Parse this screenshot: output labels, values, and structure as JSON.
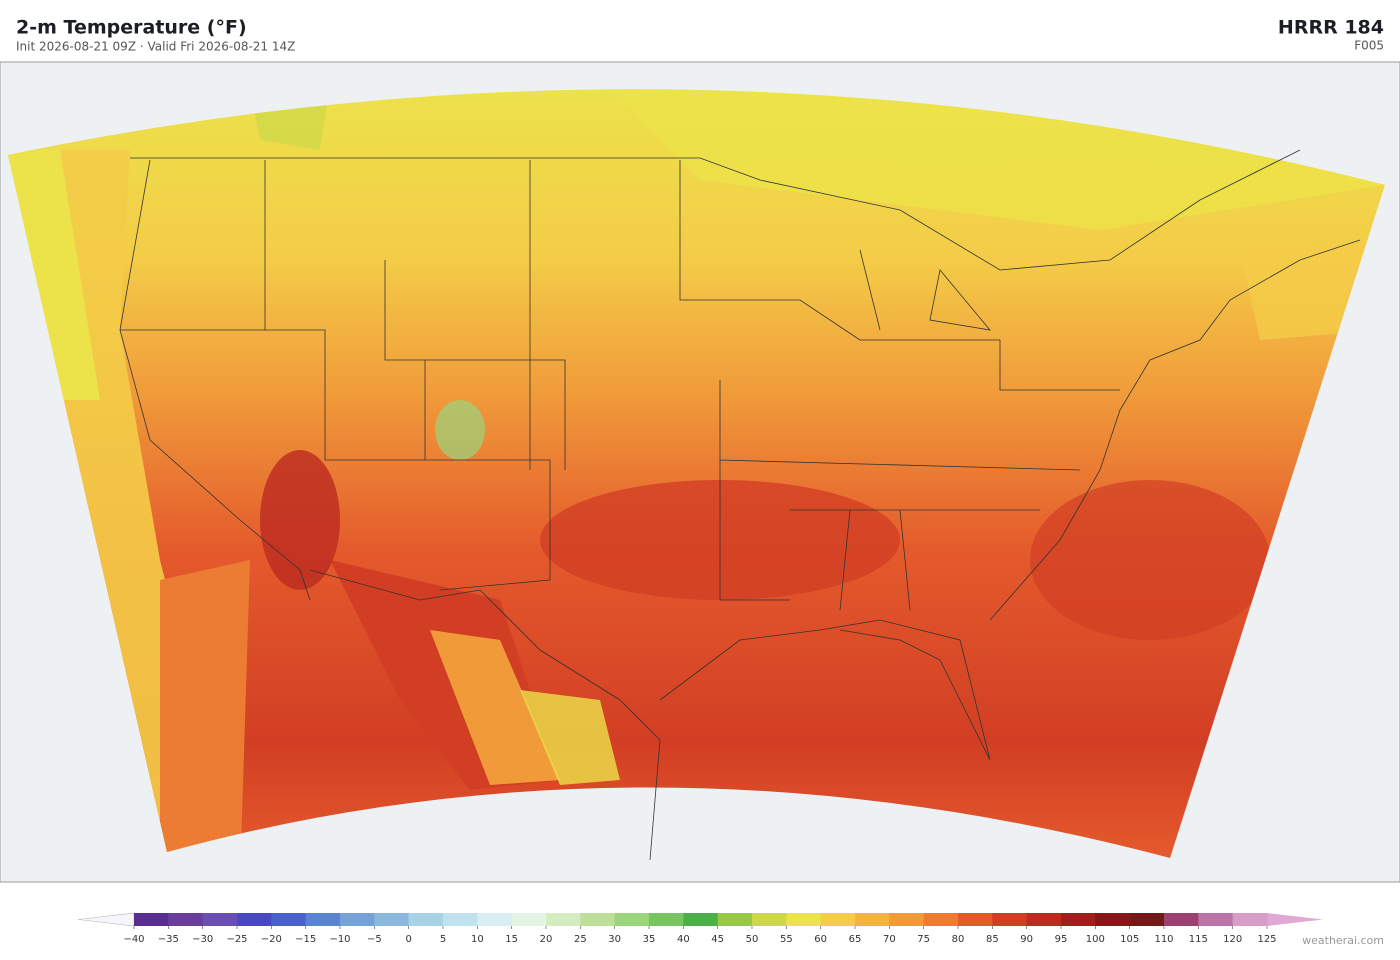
{
  "header": {
    "title": "2-m Temperature  (°F)",
    "subtitle": "Init 2026-08-21 09Z  ·  Valid Fri 2026-08-21 14Z",
    "model": "HRRR  184",
    "forecast_hour": "F005"
  },
  "colorbar": {
    "ticks": [
      {
        "value": -40,
        "label": "−40"
      },
      {
        "value": -35,
        "label": "−35"
      },
      {
        "value": -30,
        "label": "−30"
      },
      {
        "value": -25,
        "label": "−25"
      },
      {
        "value": -20,
        "label": "−20"
      },
      {
        "value": -15,
        "label": "−15"
      },
      {
        "value": -10,
        "label": "−10"
      },
      {
        "value": -5,
        "label": "−5"
      },
      0,
      5,
      10,
      15,
      20,
      25,
      30,
      35,
      40,
      45,
      50,
      55,
      60,
      65,
      70,
      75,
      80,
      85,
      90,
      95,
      100,
      105,
      110,
      115,
      120,
      125
    ],
    "colors": [
      "#5a2d91",
      "#6a3d9a",
      "#6b4fb0",
      "#4848c0",
      "#4a62c8",
      "#5a84d0",
      "#76a2d8",
      "#8db8de",
      "#a8d2e6",
      "#c0e2ee",
      "#d8eef2",
      "#e4f4e4",
      "#d4ecc0",
      "#bce09a",
      "#9ad47c",
      "#78c460",
      "#4caf48",
      "#98c84a",
      "#cdd848",
      "#ece24a",
      "#f4cc48",
      "#f2b440",
      "#f09a3a",
      "#ec7c34",
      "#e45a2c",
      "#d23e24",
      "#bc2a20",
      "#a01e1c",
      "#861618",
      "#741818",
      "#9c4070",
      "#bc74a8",
      "#d89cc8"
    ],
    "under_color": "#f4f6fa",
    "over_color": "#e0a8d4"
  },
  "credit": "weatherai.com"
}
